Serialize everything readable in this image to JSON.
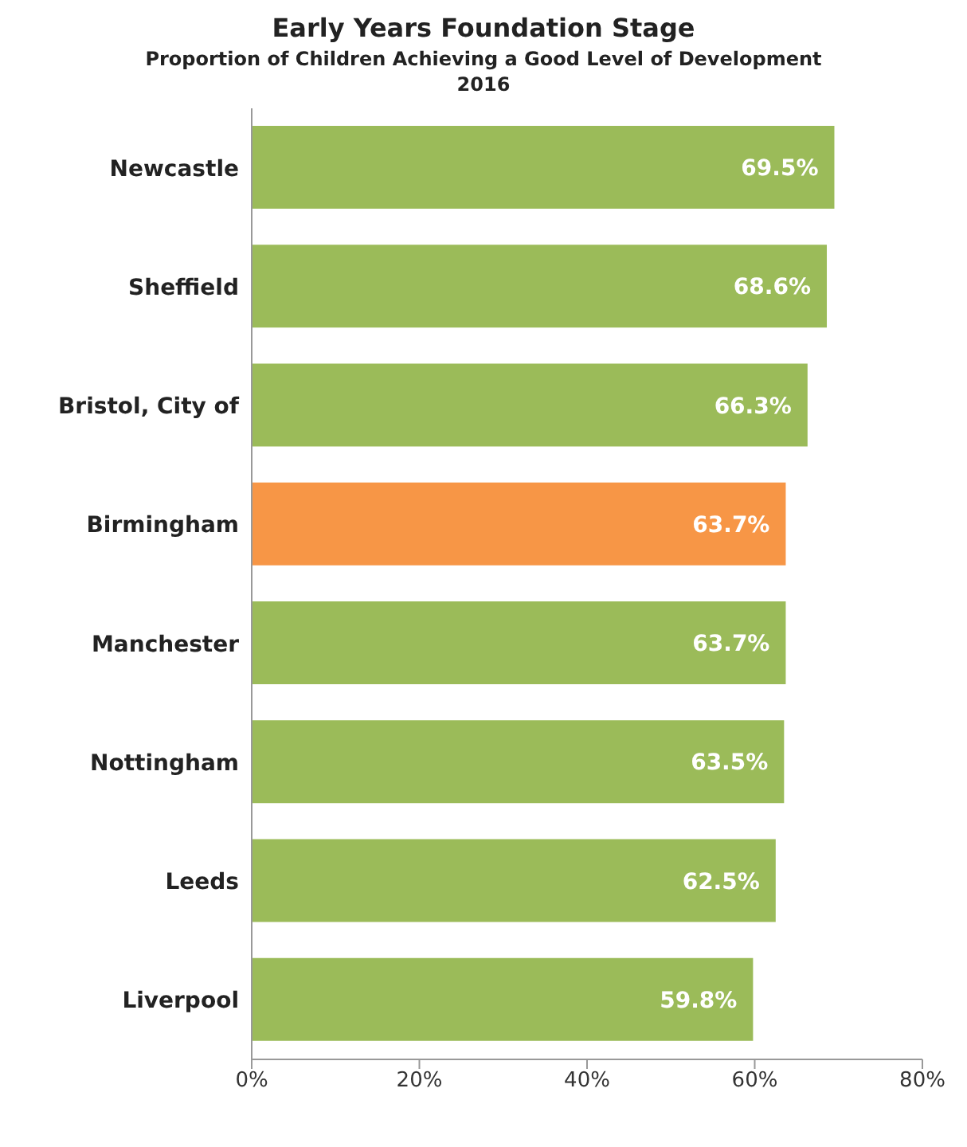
{
  "chart_data": {
    "type": "bar",
    "orientation": "horizontal",
    "title": "Early Years Foundation Stage",
    "subtitle": "Proportion of Children Achieving a Good Level of Development",
    "annotations": [
      "2016"
    ],
    "categories": [
      "Newcastle",
      "Sheffield",
      "Bristol, City of",
      "Birmingham",
      "Manchester",
      "Nottingham",
      "Leeds",
      "Liverpool"
    ],
    "values": [
      69.5,
      68.6,
      66.3,
      63.7,
      63.7,
      63.5,
      62.5,
      59.8
    ],
    "colors": [
      "#9bbb59",
      "#9bbb59",
      "#9bbb59",
      "#f79646",
      "#9bbb59",
      "#9bbb59",
      "#9bbb59",
      "#9bbb59"
    ],
    "value_labels": [
      "69.5%",
      "68.6%",
      "66.3%",
      "63.7%",
      "63.7%",
      "63.5%",
      "62.5%",
      "59.8%"
    ],
    "xlim": [
      0,
      80
    ],
    "xticks": [
      {
        "value": 0,
        "label": "0%"
      },
      {
        "value": 20,
        "label": "20%"
      },
      {
        "value": 40,
        "label": "40%"
      },
      {
        "value": 60,
        "label": "60%"
      },
      {
        "value": 80,
        "label": "80%"
      }
    ],
    "grid": false
  }
}
